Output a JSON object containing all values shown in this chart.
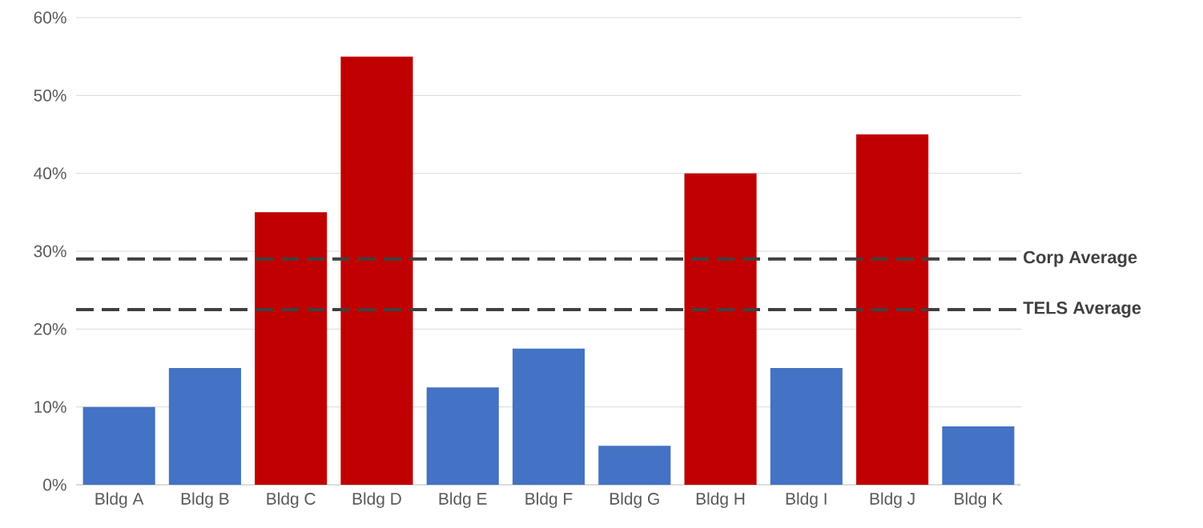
{
  "chart_data": {
    "type": "bar",
    "categories": [
      "Bldg A",
      "Bldg B",
      "Bldg C",
      "Bldg D",
      "Bldg E",
      "Bldg F",
      "Bldg G",
      "Bldg H",
      "Bldg I",
      "Bldg J",
      "Bldg K"
    ],
    "values": [
      10,
      15,
      35,
      55,
      12.5,
      17.5,
      5,
      40,
      15,
      45,
      7.5
    ],
    "colors": [
      "#4472c4",
      "#4472c4",
      "#c00000",
      "#c00000",
      "#4472c4",
      "#4472c4",
      "#4472c4",
      "#c00000",
      "#4472c4",
      "#c00000",
      "#4472c4"
    ],
    "ylim": [
      0,
      60
    ],
    "yticks": [
      {
        "value": 0,
        "label": "0%"
      },
      {
        "value": 10,
        "label": "10%"
      },
      {
        "value": 20,
        "label": "20%"
      },
      {
        "value": 30,
        "label": "30%"
      },
      {
        "value": 40,
        "label": "40%"
      },
      {
        "value": 50,
        "label": "50%"
      },
      {
        "value": 60,
        "label": "60%"
      }
    ],
    "grid": "y",
    "ref_lines": [
      {
        "axis": "y",
        "value": 29,
        "label": "Corp Average",
        "color": "#404040",
        "line_style": "dashed"
      },
      {
        "axis": "y",
        "value": 22.5,
        "label": "TELS Average",
        "color": "#404040",
        "line_style": "dashed"
      }
    ]
  }
}
